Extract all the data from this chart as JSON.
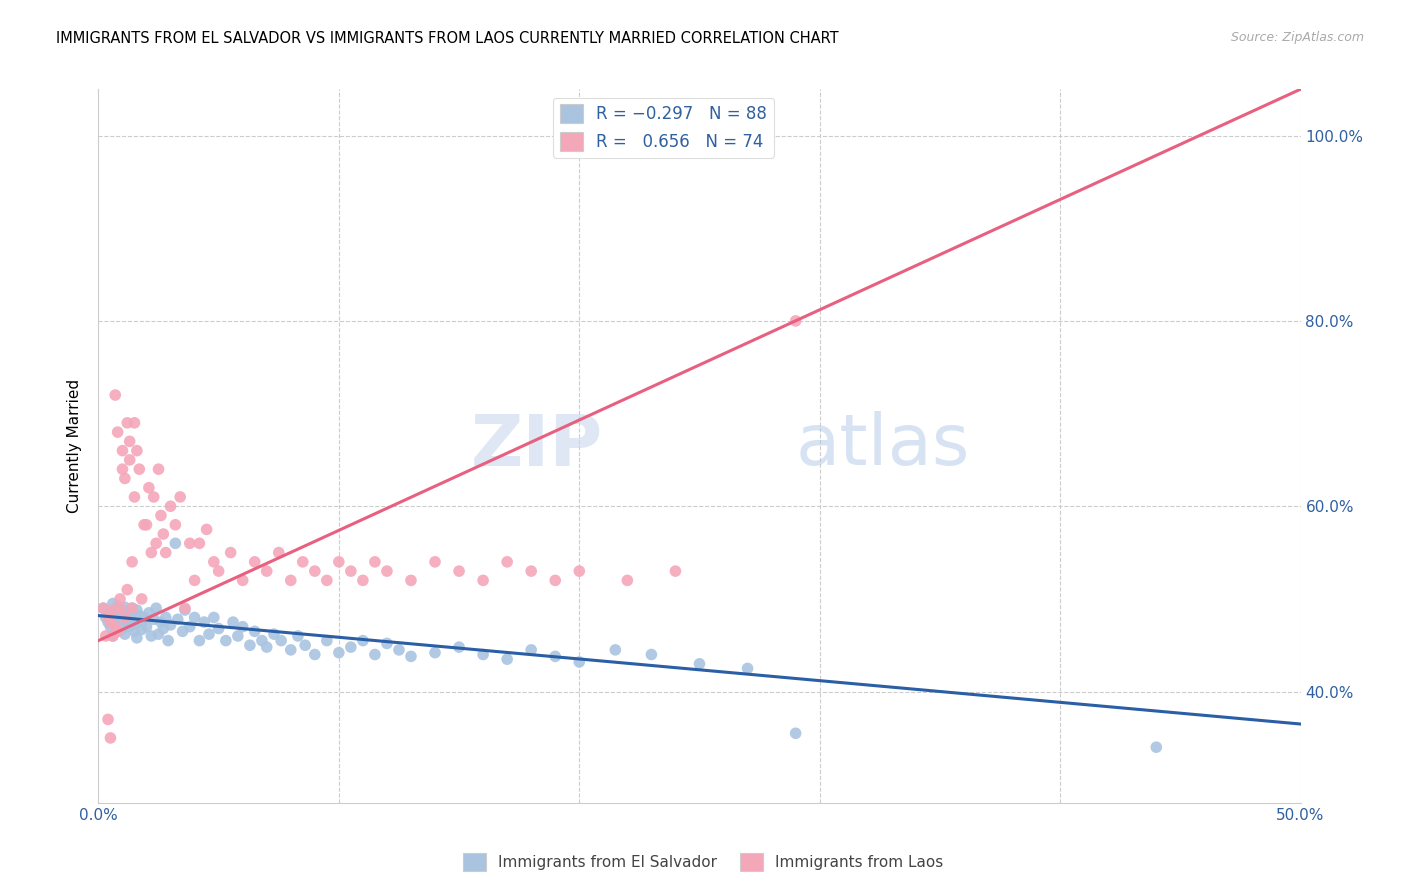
{
  "title": "IMMIGRANTS FROM EL SALVADOR VS IMMIGRANTS FROM LAOS CURRENTLY MARRIED CORRELATION CHART",
  "source": "Source: ZipAtlas.com",
  "ylabel": "Currently Married",
  "xmin": 0.0,
  "xmax": 0.5,
  "ymin": 0.28,
  "ymax": 1.05,
  "blue_R": -0.297,
  "blue_N": 88,
  "pink_R": 0.656,
  "pink_N": 74,
  "blue_color": "#aac4e0",
  "pink_color": "#f4a7b9",
  "blue_line_color": "#2a5fa5",
  "pink_line_color": "#e86080",
  "watermark_zip": "ZIP",
  "watermark_atlas": "atlas",
  "legend_label_blue": "Immigrants from El Salvador",
  "legend_label_pink": "Immigrants from Laos",
  "blue_line_x": [
    0.0,
    0.5
  ],
  "blue_line_y": [
    0.482,
    0.365
  ],
  "pink_line_x": [
    0.0,
    0.5
  ],
  "pink_line_y": [
    0.455,
    1.05
  ],
  "blue_scatter_x": [
    0.002,
    0.003,
    0.004,
    0.005,
    0.005,
    0.006,
    0.006,
    0.007,
    0.007,
    0.008,
    0.008,
    0.009,
    0.009,
    0.01,
    0.01,
    0.011,
    0.011,
    0.012,
    0.012,
    0.013,
    0.013,
    0.014,
    0.014,
    0.015,
    0.015,
    0.016,
    0.016,
    0.017,
    0.018,
    0.018,
    0.019,
    0.02,
    0.021,
    0.022,
    0.023,
    0.024,
    0.025,
    0.026,
    0.027,
    0.028,
    0.029,
    0.03,
    0.032,
    0.033,
    0.035,
    0.036,
    0.038,
    0.04,
    0.042,
    0.044,
    0.046,
    0.048,
    0.05,
    0.053,
    0.056,
    0.058,
    0.06,
    0.063,
    0.065,
    0.068,
    0.07,
    0.073,
    0.076,
    0.08,
    0.083,
    0.086,
    0.09,
    0.095,
    0.1,
    0.105,
    0.11,
    0.115,
    0.12,
    0.125,
    0.13,
    0.14,
    0.15,
    0.16,
    0.17,
    0.18,
    0.19,
    0.2,
    0.215,
    0.23,
    0.25,
    0.27,
    0.29,
    0.44
  ],
  "blue_scatter_y": [
    0.49,
    0.48,
    0.475,
    0.485,
    0.47,
    0.495,
    0.46,
    0.488,
    0.472,
    0.492,
    0.465,
    0.478,
    0.483,
    0.487,
    0.468,
    0.491,
    0.462,
    0.475,
    0.48,
    0.47,
    0.485,
    0.477,
    0.49,
    0.465,
    0.473,
    0.488,
    0.458,
    0.482,
    0.475,
    0.467,
    0.48,
    0.47,
    0.485,
    0.46,
    0.478,
    0.49,
    0.462,
    0.475,
    0.468,
    0.48,
    0.455,
    0.472,
    0.56,
    0.478,
    0.465,
    0.488,
    0.47,
    0.48,
    0.455,
    0.475,
    0.462,
    0.48,
    0.468,
    0.455,
    0.475,
    0.46,
    0.47,
    0.45,
    0.465,
    0.455,
    0.448,
    0.462,
    0.455,
    0.445,
    0.46,
    0.45,
    0.44,
    0.455,
    0.442,
    0.448,
    0.455,
    0.44,
    0.452,
    0.445,
    0.438,
    0.442,
    0.448,
    0.44,
    0.435,
    0.445,
    0.438,
    0.432,
    0.445,
    0.44,
    0.43,
    0.425,
    0.355,
    0.34
  ],
  "pink_scatter_x": [
    0.002,
    0.003,
    0.004,
    0.004,
    0.005,
    0.005,
    0.006,
    0.006,
    0.007,
    0.007,
    0.008,
    0.008,
    0.009,
    0.009,
    0.01,
    0.01,
    0.011,
    0.011,
    0.012,
    0.012,
    0.013,
    0.013,
    0.014,
    0.014,
    0.015,
    0.015,
    0.016,
    0.017,
    0.018,
    0.019,
    0.02,
    0.021,
    0.022,
    0.023,
    0.024,
    0.025,
    0.026,
    0.027,
    0.028,
    0.03,
    0.032,
    0.034,
    0.036,
    0.038,
    0.04,
    0.042,
    0.045,
    0.048,
    0.05,
    0.055,
    0.06,
    0.065,
    0.07,
    0.075,
    0.08,
    0.085,
    0.09,
    0.095,
    0.1,
    0.105,
    0.11,
    0.115,
    0.12,
    0.13,
    0.14,
    0.15,
    0.16,
    0.17,
    0.18,
    0.19,
    0.2,
    0.22,
    0.24,
    0.29
  ],
  "pink_scatter_y": [
    0.49,
    0.46,
    0.48,
    0.37,
    0.475,
    0.35,
    0.488,
    0.46,
    0.47,
    0.72,
    0.465,
    0.68,
    0.49,
    0.5,
    0.64,
    0.66,
    0.48,
    0.63,
    0.69,
    0.51,
    0.67,
    0.65,
    0.49,
    0.54,
    0.61,
    0.69,
    0.66,
    0.64,
    0.5,
    0.58,
    0.58,
    0.62,
    0.55,
    0.61,
    0.56,
    0.64,
    0.59,
    0.57,
    0.55,
    0.6,
    0.58,
    0.61,
    0.49,
    0.56,
    0.52,
    0.56,
    0.575,
    0.54,
    0.53,
    0.55,
    0.52,
    0.54,
    0.53,
    0.55,
    0.52,
    0.54,
    0.53,
    0.52,
    0.54,
    0.53,
    0.52,
    0.54,
    0.53,
    0.52,
    0.54,
    0.53,
    0.52,
    0.54,
    0.53,
    0.52,
    0.53,
    0.52,
    0.53,
    0.8
  ]
}
